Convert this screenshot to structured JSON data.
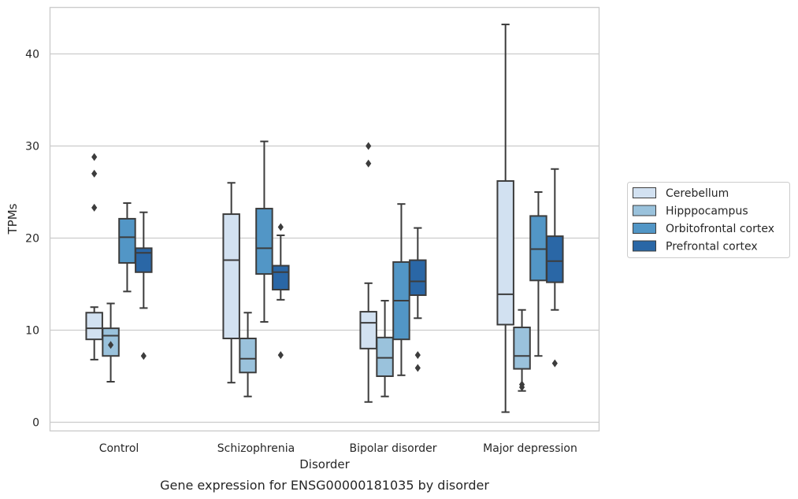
{
  "chart_data": {
    "type": "box",
    "title": "",
    "caption": "Gene expression for ENSG00000181035 by disorder",
    "xlabel": "Disorder",
    "ylabel": "TPMs",
    "categories": [
      "Control",
      "Schizophrenia",
      "Bipolar disorder",
      "Major depression"
    ],
    "ylim": [
      -0.9,
      45
    ],
    "yticks": [
      0,
      10,
      20,
      30,
      40
    ],
    "grid": "horizontal",
    "legend_position": "right",
    "series": [
      {
        "name": "Cerebellum",
        "color": "#d2e1f1",
        "boxes": [
          {
            "whisker_low": 6.8,
            "q1": 9.0,
            "median": 10.2,
            "q3": 11.9,
            "whisker_high": 12.5,
            "outliers": [
              23.3,
              27.0,
              28.8
            ]
          },
          {
            "whisker_low": 4.3,
            "q1": 9.1,
            "median": 17.6,
            "q3": 22.6,
            "whisker_high": 26.0,
            "outliers": []
          },
          {
            "whisker_low": 2.2,
            "q1": 8.0,
            "median": 10.8,
            "q3": 12.0,
            "whisker_high": 15.1,
            "outliers": [
              28.1,
              30.0
            ]
          },
          {
            "whisker_low": 1.1,
            "q1": 10.6,
            "median": 13.9,
            "q3": 26.2,
            "whisker_high": 43.2,
            "outliers": []
          }
        ]
      },
      {
        "name": "Hipppocampus",
        "color": "#9ac2dc",
        "boxes": [
          {
            "whisker_low": 4.4,
            "q1": 7.2,
            "median": 9.4,
            "q3": 10.2,
            "whisker_high": 12.9,
            "outliers": [
              8.4
            ]
          },
          {
            "whisker_low": 2.8,
            "q1": 5.4,
            "median": 6.9,
            "q3": 9.1,
            "whisker_high": 11.9,
            "outliers": []
          },
          {
            "whisker_low": 2.8,
            "q1": 5.0,
            "median": 7.0,
            "q3": 9.2,
            "whisker_high": 13.2,
            "outliers": []
          },
          {
            "whisker_low": 3.4,
            "q1": 5.8,
            "median": 7.2,
            "q3": 10.3,
            "whisker_high": 12.2,
            "outliers": [
              3.8,
              4.1
            ]
          }
        ]
      },
      {
        "name": "Orbitofrontal cortex",
        "color": "#5296c6",
        "boxes": [
          {
            "whisker_low": 14.2,
            "q1": 17.3,
            "median": 20.1,
            "q3": 22.1,
            "whisker_high": 23.8,
            "outliers": []
          },
          {
            "whisker_low": 10.9,
            "q1": 16.1,
            "median": 18.9,
            "q3": 23.2,
            "whisker_high": 30.5,
            "outliers": []
          },
          {
            "whisker_low": 5.1,
            "q1": 9.0,
            "median": 13.2,
            "q3": 17.4,
            "whisker_high": 23.7,
            "outliers": []
          },
          {
            "whisker_low": 7.2,
            "q1": 15.4,
            "median": 18.8,
            "q3": 22.4,
            "whisker_high": 25.0,
            "outliers": []
          }
        ]
      },
      {
        "name": "Prefrontal cortex",
        "color": "#2a67a6",
        "boxes": [
          {
            "whisker_low": 12.4,
            "q1": 16.3,
            "median": 18.4,
            "q3": 18.9,
            "whisker_high": 22.8,
            "outliers": [
              7.2
            ]
          },
          {
            "whisker_low": 13.3,
            "q1": 14.4,
            "median": 16.3,
            "q3": 17.0,
            "whisker_high": 20.3,
            "outliers": [
              7.3,
              21.2
            ]
          },
          {
            "whisker_low": 11.3,
            "q1": 13.8,
            "median": 15.3,
            "q3": 17.6,
            "whisker_high": 21.1,
            "outliers": [
              5.9,
              7.3
            ]
          },
          {
            "whisker_low": 12.2,
            "q1": 15.2,
            "median": 17.5,
            "q3": 20.2,
            "whisker_high": 27.5,
            "outliers": [
              6.4
            ]
          }
        ]
      }
    ]
  }
}
